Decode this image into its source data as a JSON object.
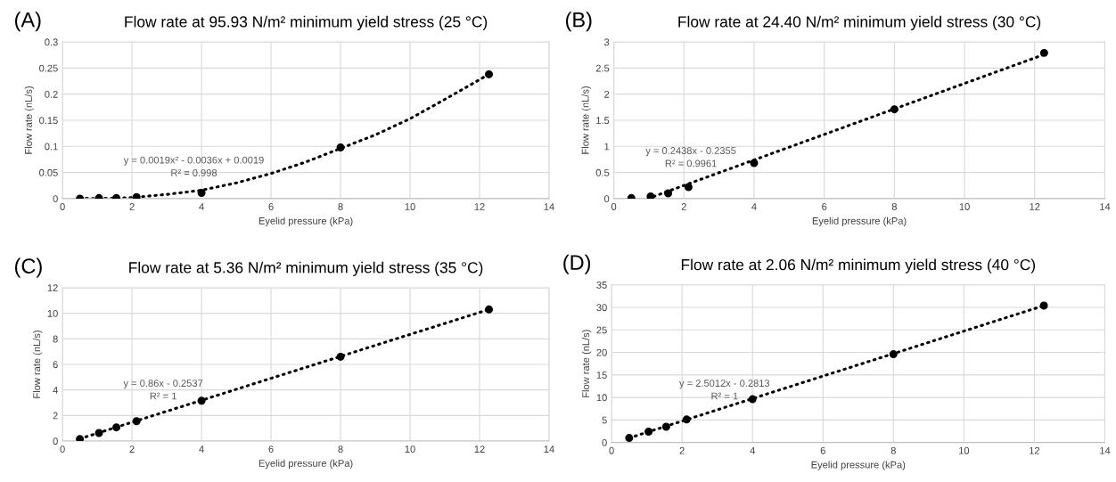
{
  "chart_data": [
    {
      "type": "scatter",
      "title": "Flow rate at 95.93 N/m² minimum yield stress (25 °C)",
      "xlabel": "Eyelid pressure (kPa)",
      "ylabel": "Flow rate (nL/s)",
      "annotations": [
        "(A)",
        "y = 0.0019x² - 0.0036x + 0.0019\nR² = 0.998"
      ],
      "xlim": [
        0,
        14
      ],
      "xticks": [
        0,
        2,
        4,
        6,
        8,
        10,
        12,
        14
      ],
      "ylim": [
        0,
        0.3
      ],
      "yticks": [
        0,
        0.05,
        0.1,
        0.15,
        0.2,
        0.25,
        0.3
      ],
      "grid": true,
      "series": [
        {
          "type": "scatter",
          "color": "#000000",
          "marker": "circle",
          "x": [
            0.5,
            1.05,
            1.55,
            2.13,
            4,
            8,
            12.27
          ],
          "values": [
            0.0,
            0.001,
            0.001,
            0.003,
            0.011,
            0.098,
            0.238
          ]
        },
        {
          "type": "line",
          "color": "#000000",
          "marker": "none",
          "line_style": "dotted",
          "x": [
            0.5,
            1,
            2,
            3,
            4,
            5,
            6,
            7,
            8,
            9,
            10,
            11,
            12.27
          ],
          "values": [
            0.001,
            0.0,
            0.002,
            0.008,
            0.016,
            0.03,
            0.048,
            0.07,
            0.096,
            0.122,
            0.153,
            0.19,
            0.238
          ]
        }
      ]
    },
    {
      "type": "scatter",
      "title": "Flow rate at 24.40 N/m² minimum yield stress (30 °C)",
      "xlabel": "Eyelid pressure (kPa)",
      "ylabel": "Flow rate (nL/s)",
      "annotations": [
        "(B)",
        "y = 0.2438x - 0.2355\nR² = 0.9961"
      ],
      "xlim": [
        0,
        14
      ],
      "xticks": [
        0,
        2,
        4,
        6,
        8,
        10,
        12,
        14
      ],
      "ylim": [
        0,
        3
      ],
      "yticks": [
        0,
        0.5,
        1,
        1.5,
        2,
        2.5,
        3
      ],
      "grid": true,
      "series": [
        {
          "type": "scatter",
          "color": "#000000",
          "marker": "circle",
          "x": [
            0.5,
            1.05,
            1.55,
            2.13,
            4,
            8,
            12.27
          ],
          "values": [
            0.01,
            0.04,
            0.1,
            0.22,
            0.68,
            1.71,
            2.79
          ]
        },
        {
          "type": "line",
          "color": "#000000",
          "marker": "none",
          "line_style": "dotted",
          "x": [
            0.97,
            12.27
          ],
          "values": [
            0.0,
            2.76
          ]
        }
      ]
    },
    {
      "type": "scatter",
      "title": "Flow rate at 5.36 N/m² minimum yield stress (35 °C)",
      "xlabel": "Eyelid pressure (kPa)",
      "ylabel": "Flow rate (nL/s)",
      "annotations": [
        "(C)",
        "y = 0.86x - 0.2537\nR² = 1"
      ],
      "xlim": [
        0,
        14
      ],
      "xticks": [
        0,
        2,
        4,
        6,
        8,
        10,
        12,
        14
      ],
      "ylim": [
        0,
        12
      ],
      "yticks": [
        0,
        2,
        4,
        6,
        8,
        10,
        12
      ],
      "grid": true,
      "series": [
        {
          "type": "scatter",
          "color": "#000000",
          "marker": "circle",
          "x": [
            0.5,
            1.05,
            1.55,
            2.13,
            4,
            8,
            12.27
          ],
          "values": [
            0.15,
            0.63,
            1.07,
            1.55,
            3.15,
            6.6,
            10.3
          ]
        },
        {
          "type": "line",
          "color": "#000000",
          "marker": "none",
          "line_style": "dotted",
          "x": [
            0.5,
            12.27
          ],
          "values": [
            0.18,
            10.3
          ]
        }
      ]
    },
    {
      "type": "scatter",
      "title": "Flow rate at 2.06 N/m² minimum yield stress (40 °C)",
      "xlabel": "Eyelid pressure (kPa)",
      "ylabel": "Flow rate (nL/s)",
      "annotations": [
        "(D)",
        "y = 2.5012x - 0.2813\nR² = 1"
      ],
      "xlim": [
        0,
        14
      ],
      "xticks": [
        0,
        2,
        4,
        6,
        8,
        10,
        12,
        14
      ],
      "ylim": [
        0,
        35
      ],
      "yticks": [
        0,
        5,
        10,
        15,
        20,
        25,
        30,
        35
      ],
      "grid": true,
      "series": [
        {
          "type": "scatter",
          "color": "#000000",
          "marker": "circle",
          "x": [
            0.5,
            1.05,
            1.55,
            2.13,
            4,
            8,
            12.27
          ],
          "values": [
            1.0,
            2.4,
            3.5,
            5.1,
            9.6,
            19.6,
            30.4
          ]
        },
        {
          "type": "line",
          "color": "#000000",
          "marker": "none",
          "line_style": "dotted",
          "x": [
            0.5,
            12.27
          ],
          "values": [
            1.0,
            30.4
          ]
        }
      ]
    }
  ]
}
